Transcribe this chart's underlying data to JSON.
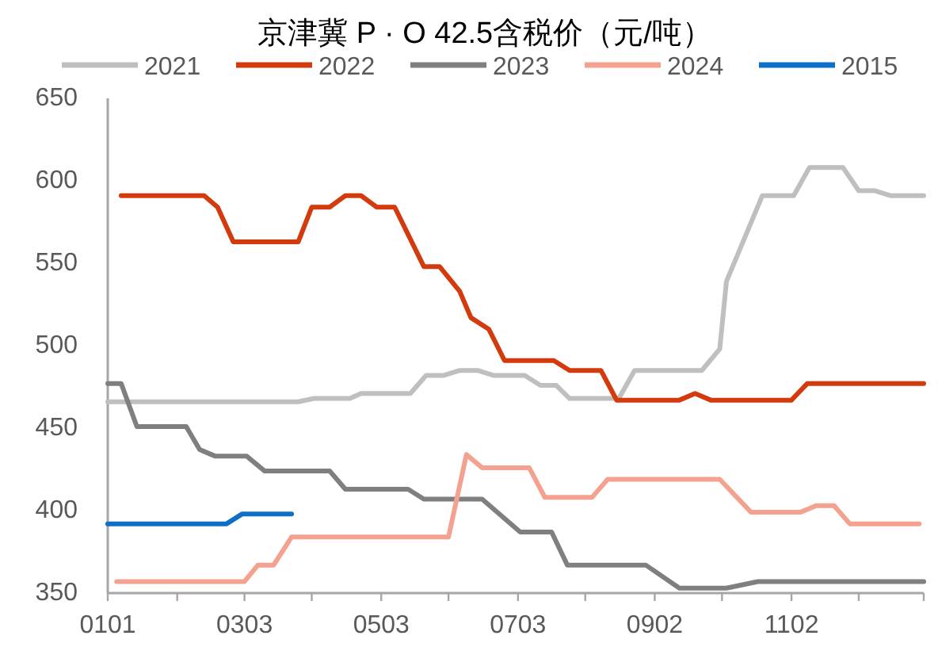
{
  "chart_data": {
    "type": "line",
    "title": "京津冀 P · O 42.5含税价（元/吨）",
    "legend": "top",
    "xlim": [
      "--01-01",
      "--12-31"
    ],
    "xticks": [
      {
        "value": "--01-01",
        "label": "0101"
      },
      {
        "value": "--02-01",
        "label": null
      },
      {
        "value": "--03-03",
        "label": "0303"
      },
      {
        "value": "--04-02",
        "label": null
      },
      {
        "value": "--05-03",
        "label": "0503"
      },
      {
        "value": "--06-02",
        "label": null
      },
      {
        "value": "--07-03",
        "label": "0703"
      },
      {
        "value": "--08-02",
        "label": null
      },
      {
        "value": "--09-02",
        "label": "0902"
      },
      {
        "value": "--10-02",
        "label": null
      },
      {
        "value": "--11-02",
        "label": "1102"
      },
      {
        "value": "--12-02",
        "label": null
      },
      {
        "value": "--12-31",
        "label": null
      }
    ],
    "ylim": [
      350,
      650
    ],
    "yticks": [
      350,
      400,
      450,
      500,
      550,
      600,
      650
    ],
    "series": [
      {
        "name": "2021",
        "color": "#bfbfbf",
        "x": [
          "--01-01",
          "--03-27",
          "--04-03",
          "--04-19",
          "--04-24",
          "--05-16",
          "--05-23",
          "--05-31",
          "--06-07",
          "--06-15",
          "--06-22",
          "--07-06",
          "--07-13",
          "--07-20",
          "--07-26",
          "--08-17",
          "--08-24",
          "--09-23",
          "--10-01",
          "--10-04",
          "--10-20",
          "--11-03",
          "--11-10",
          "--11-25",
          "--12-02",
          "--12-09",
          "--12-16",
          "--12-31"
        ],
        "values": [
          466,
          466,
          468,
          468,
          471,
          471,
          482,
          482,
          485,
          485,
          482,
          482,
          476,
          476,
          468,
          468,
          485,
          485,
          498,
          539,
          591,
          591,
          608,
          608,
          594,
          594,
          591,
          591
        ]
      },
      {
        "name": "2022",
        "color": "#d33a0e",
        "x": [
          "--01-07",
          "--02-13",
          "--02-19",
          "--02-26",
          "--03-27",
          "--04-02",
          "--04-10",
          "--04-17",
          "--04-24",
          "--05-01",
          "--05-09",
          "--05-22",
          "--05-29",
          "--06-07",
          "--06-12",
          "--06-20",
          "--06-27",
          "--07-19",
          "--07-26",
          "--08-09",
          "--08-16",
          "--09-13",
          "--09-20",
          "--09-27",
          "--11-02",
          "--11-09",
          "--12-31"
        ],
        "values": [
          591,
          591,
          584,
          563,
          563,
          584,
          584,
          591,
          591,
          584,
          584,
          548,
          548,
          533,
          517,
          510,
          491,
          491,
          485,
          485,
          467,
          467,
          471,
          467,
          467,
          477,
          477
        ]
      },
      {
        "name": "2023",
        "color": "#7f7f7f",
        "x": [
          "--01-01",
          "--01-07",
          "--01-14",
          "--02-05",
          "--02-11",
          "--02-18",
          "--03-04",
          "--03-12",
          "--04-10",
          "--04-17",
          "--05-15",
          "--05-22",
          "--06-17",
          "--07-04",
          "--07-18",
          "--07-25",
          "--08-29",
          "--09-13",
          "--10-04",
          "--10-18",
          "--12-31"
        ],
        "values": [
          477,
          477,
          451,
          451,
          437,
          433,
          433,
          424,
          424,
          413,
          413,
          407,
          407,
          387,
          387,
          367,
          367,
          353,
          353,
          357,
          357
        ]
      },
      {
        "name": "2024",
        "color": "#f4a190",
        "x": [
          "--01-05",
          "--03-03",
          "--03-09",
          "--03-16",
          "--03-24",
          "--06-02",
          "--06-10",
          "--06-17",
          "--07-08",
          "--07-15",
          "--08-05",
          "--08-12",
          "--10-01",
          "--10-15",
          "--11-06",
          "--11-13",
          "--11-21",
          "--11-28",
          "--12-29"
        ],
        "values": [
          357,
          357,
          367,
          367,
          384,
          384,
          434,
          426,
          426,
          408,
          408,
          419,
          419,
          399,
          399,
          403,
          403,
          392,
          392
        ]
      },
      {
        "name": "2015",
        "color": "#0f6fc6",
        "x": [
          "--01-01",
          "--02-23",
          "--03-02",
          "--03-24"
        ],
        "values": [
          392,
          392,
          398,
          398
        ]
      }
    ]
  }
}
